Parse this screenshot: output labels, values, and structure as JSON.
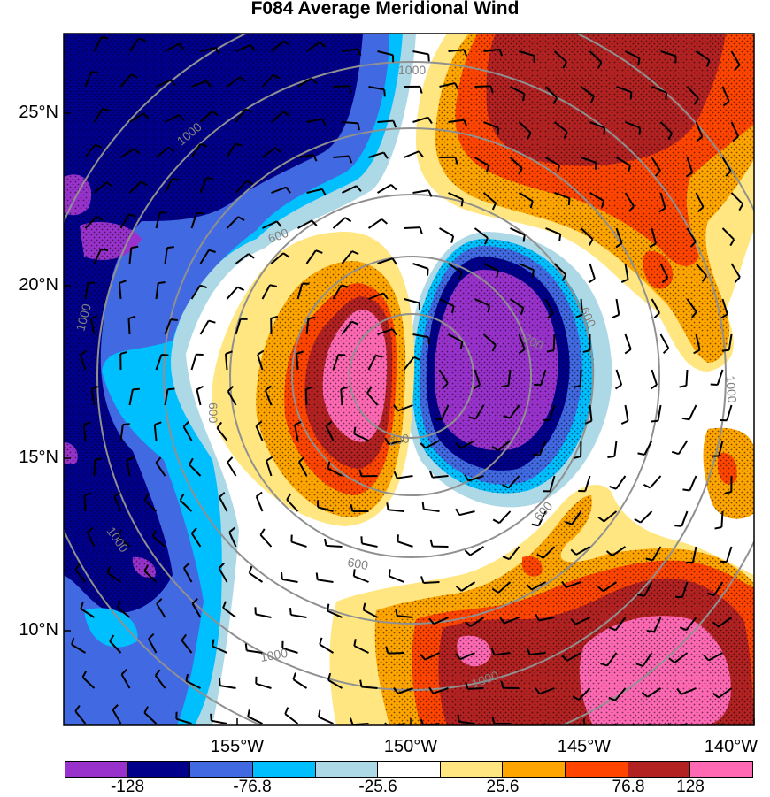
{
  "title": "F084 Average Meridional Wind",
  "lat_labels": [
    "25°N",
    "20°N",
    "15°N",
    "10°N"
  ],
  "lon_labels": [
    "155°W",
    "150°W",
    "145°W",
    "140°W"
  ],
  "colorbar": {
    "colors": [
      "#9932cc",
      "#00008b",
      "#4169e1",
      "#00bfff",
      "#add8e6",
      "#ffffff",
      "#ffe680",
      "#ffa500",
      "#ff4500",
      "#b22222",
      "#ff69b4"
    ],
    "labels": [
      "-128",
      "-76.8",
      "-25.6",
      "25.6",
      "76.8",
      "128"
    ]
  },
  "contour_labels": [
    "1000",
    "1000",
    "1000",
    "1000",
    "1000",
    "1000",
    "1000",
    "600",
    "600",
    "600",
    "600",
    "600",
    "200",
    "200"
  ]
}
